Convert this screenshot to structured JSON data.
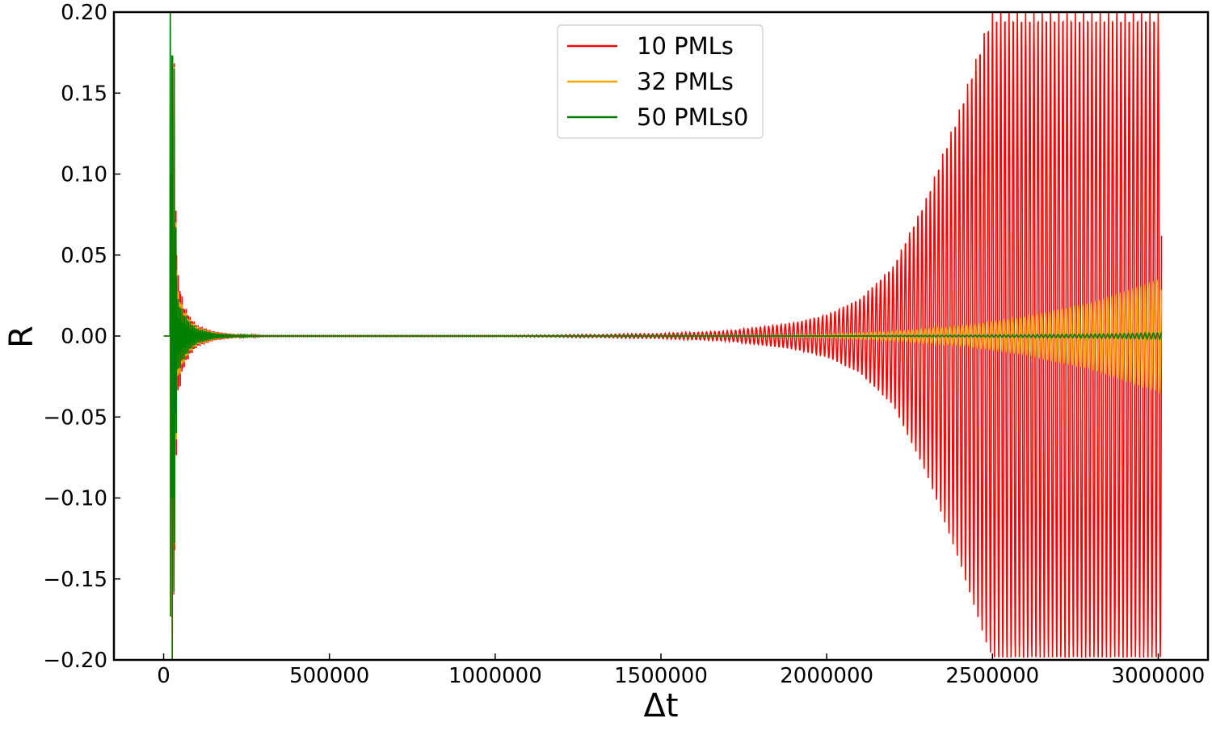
{
  "chart_data": {
    "type": "line",
    "title": "",
    "xlabel": "Δt",
    "ylabel": "R",
    "xlim": [
      -150000,
      3150000
    ],
    "ylim": [
      -0.2,
      0.2
    ],
    "grid": false,
    "legend_position": "top-center",
    "x_ticks": [
      0,
      500000,
      1000000,
      1500000,
      2000000,
      2500000,
      3000000
    ],
    "x_tick_labels": [
      "0",
      "500000",
      "1000000",
      "1500000",
      "2000000",
      "2500000",
      "3000000"
    ],
    "y_ticks": [
      0.2,
      0.15,
      0.1,
      0.05,
      0.0,
      -0.05,
      -0.1,
      -0.15,
      -0.2
    ],
    "y_tick_labels": [
      "0.20",
      "0.15",
      "0.10",
      "0.05",
      "0.00",
      "−0.05",
      "−0.10",
      "−0.15",
      "−0.20"
    ],
    "series": [
      {
        "name": "10 PMLs",
        "color": "#ff0000",
        "x_start": 0,
        "x_end": 3010000,
        "pulse_onset": 20000,
        "early_envelope": [
          [
            30000,
            0.2
          ],
          [
            40000,
            0.042
          ],
          [
            60000,
            0.02
          ],
          [
            80000,
            0.012
          ],
          [
            100000,
            0.007
          ],
          [
            150000,
            0.003
          ],
          [
            200000,
            0.0015
          ],
          [
            250000,
            0.0006
          ],
          [
            300000,
            0.0002
          ]
        ],
        "late_envelope": [
          [
            1000000,
            0.0
          ],
          [
            1300000,
            0.0008
          ],
          [
            1500000,
            0.0015
          ],
          [
            1700000,
            0.003
          ],
          [
            1900000,
            0.008
          ],
          [
            2000000,
            0.013
          ],
          [
            2100000,
            0.023
          ],
          [
            2200000,
            0.043
          ],
          [
            2300000,
            0.085
          ],
          [
            2400000,
            0.14
          ],
          [
            2480000,
            0.19
          ],
          [
            2500000,
            0.2
          ],
          [
            3010000,
            0.2
          ]
        ]
      },
      {
        "name": "32 PMLs",
        "color": "#ffa500",
        "x_start": 0,
        "x_end": 3010000,
        "pulse_onset": 20000,
        "early_envelope": [
          [
            30000,
            0.2
          ],
          [
            40000,
            0.03
          ],
          [
            60000,
            0.017
          ],
          [
            80000,
            0.01
          ],
          [
            100000,
            0.006
          ],
          [
            150000,
            0.0025
          ],
          [
            200000,
            0.001
          ],
          [
            250000,
            0.0004
          ],
          [
            300000,
            0.0001
          ]
        ],
        "late_envelope": [
          [
            1800000,
            0.0
          ],
          [
            2000000,
            0.001
          ],
          [
            2200000,
            0.003
          ],
          [
            2400000,
            0.006
          ],
          [
            2600000,
            0.012
          ],
          [
            2800000,
            0.021
          ],
          [
            3000000,
            0.035
          ],
          [
            3010000,
            0.036
          ]
        ]
      },
      {
        "name": "50 PMLs0",
        "color": "#008000",
        "x_start": 0,
        "x_end": 3010000,
        "pulse_onset": 20000,
        "early_envelope": [
          [
            30000,
            0.2
          ],
          [
            40000,
            0.025
          ],
          [
            60000,
            0.015
          ],
          [
            80000,
            0.009
          ],
          [
            100000,
            0.005
          ],
          [
            150000,
            0.002
          ],
          [
            200000,
            0.0008
          ],
          [
            250000,
            0.0003
          ],
          [
            300000,
            0.0001
          ]
        ],
        "late_envelope": [
          [
            2000000,
            0.0
          ],
          [
            2400000,
            0.0005
          ],
          [
            2800000,
            0.0012
          ],
          [
            3010000,
            0.002
          ]
        ]
      }
    ]
  }
}
